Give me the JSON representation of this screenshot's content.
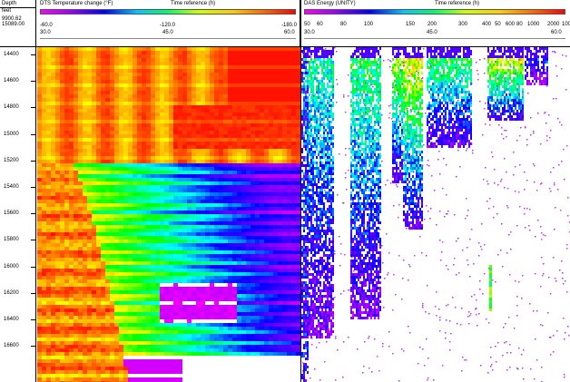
{
  "depth_track": {
    "title": "Depth",
    "unit": "feet",
    "range_top": "9900.62",
    "range_bottom": "15089.00",
    "ticks": [
      "14400",
      "14600",
      "14800",
      "15000",
      "15200",
      "15400",
      "15600",
      "15800",
      "16000",
      "16200",
      "16400",
      "16600"
    ]
  },
  "dts_track": {
    "title": "DTS Temperature change (°F)",
    "time_title": "Time reference (h)",
    "scale_left": "-60.0",
    "scale_mid": "-120.0",
    "scale_right": "-180.0",
    "time_left": "30.0",
    "time_mid": "45.0",
    "time_right": "60.0",
    "colormap": [
      "#ff0000",
      "#ff8000",
      "#ffff00",
      "#00ff00",
      "#00ffff",
      "#0000ff",
      "#8000ff",
      "#ff00ff",
      "#ffffff"
    ]
  },
  "das_track": {
    "title": "DAS Energy (UNITY)",
    "time_title": "Time reference (h)",
    "scale_labels": [
      "50",
      "60",
      "80",
      "100",
      "150",
      "200",
      "300",
      "400",
      "50",
      "600",
      "80",
      "1000",
      "2000",
      "10000"
    ],
    "time_left": "30.0",
    "time_mid": "45.0",
    "time_right": "60.0",
    "colormap": [
      "#ff00ff",
      "#8000ff",
      "#0000ff",
      "#00ffff",
      "#00ff00",
      "#ffff00",
      "#ff8000",
      "#ff0000"
    ]
  }
}
